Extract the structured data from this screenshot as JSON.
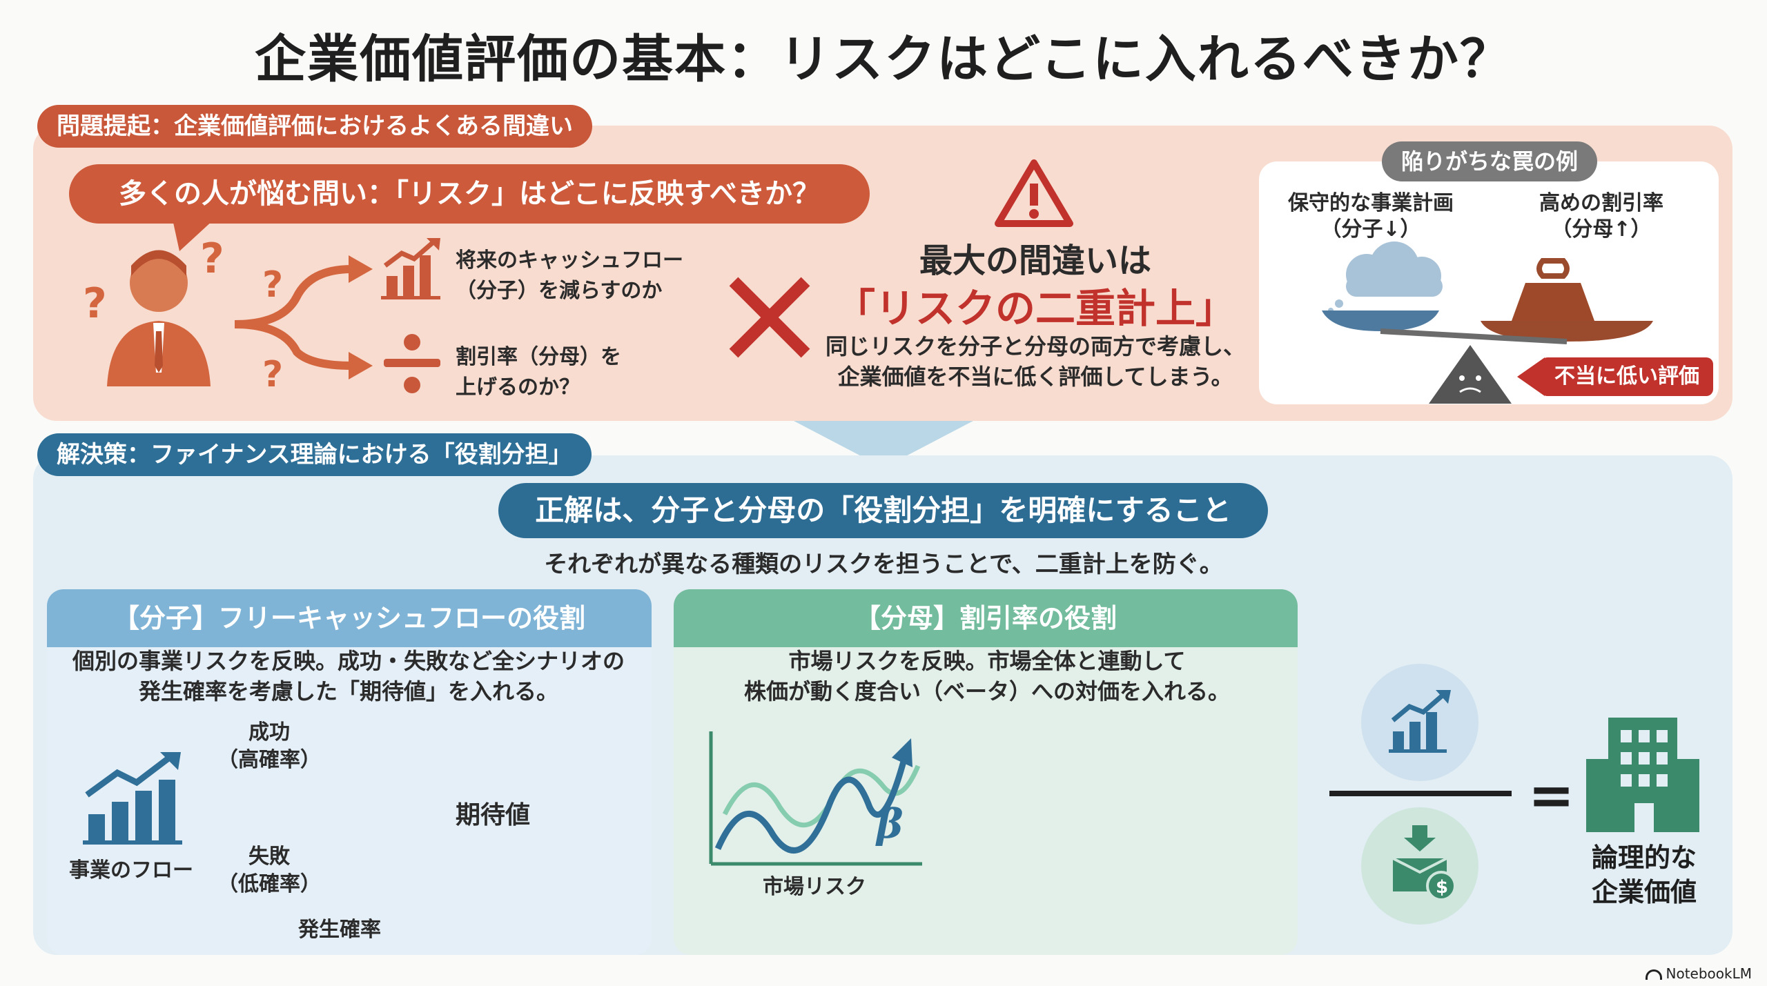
{
  "title": "企業価値評価の基本：リスクはどこに入れるべきか？",
  "problem": {
    "tag": "問題提起：企業価値評価におけるよくある間違い",
    "question": "多くの人が悩む問い：「リスク」はどこに反映すべきか？",
    "option1": [
      "将来のキャッシュフロー",
      "（分子）を減らすのか"
    ],
    "option2": [
      "割引率（分母）を",
      "上げるのか？"
    ],
    "mistake_heading": "最大の間違いは",
    "mistake_highlight": "「リスクの二重計上」",
    "mistake_desc": [
      "同じリスクを分子と分母の両方で考慮し、",
      "企業価値を不当に低く評価してしまう。"
    ],
    "trap": {
      "title": "陥りがちな罠の例",
      "left_label": [
        "保守的な事業計画",
        "（分子↓）"
      ],
      "right_label": [
        "高めの割引率",
        "（分母↑）"
      ],
      "result_badge": "不当に低い評価"
    }
  },
  "solution": {
    "tag": "解決策：ファイナンス理論における「役割分担」",
    "headline": "正解は、分子と分母の「役割分担」を明確にすること",
    "subline": "それぞれが異なる種類のリスクを担うことで、二重計上を防ぐ。",
    "numerator_card": {
      "title": "【分子】フリーキャッシュフローの役割",
      "desc": [
        "個別の事業リスクを反映。成功・失敗など全シナリオの",
        "発生確率を考慮した「期待値」を入れる。"
      ],
      "success": [
        "成功",
        "（高確率）"
      ],
      "failure": [
        "失敗",
        "（低確率）"
      ],
      "flow_label": "事業のフロー",
      "expected_label": "期待値",
      "probability_label": "発生確率"
    },
    "denominator_card": {
      "title": "【分母】割引率の役割",
      "desc": [
        "市場リスクを反映。市場全体と連動して",
        "株価が動く度合い（ベータ）への対価を入れる。"
      ],
      "beta_symbol": "β",
      "market_label": "市場リスク"
    },
    "equation": {
      "equals": "=",
      "result_label": [
        "論理的な",
        "企業価値"
      ]
    }
  },
  "colors": {
    "accent_red": "#c9583a",
    "accent_blue": "#2d6f97",
    "accent_green": "#3b8a6b"
  },
  "footer": "NotebookLM"
}
